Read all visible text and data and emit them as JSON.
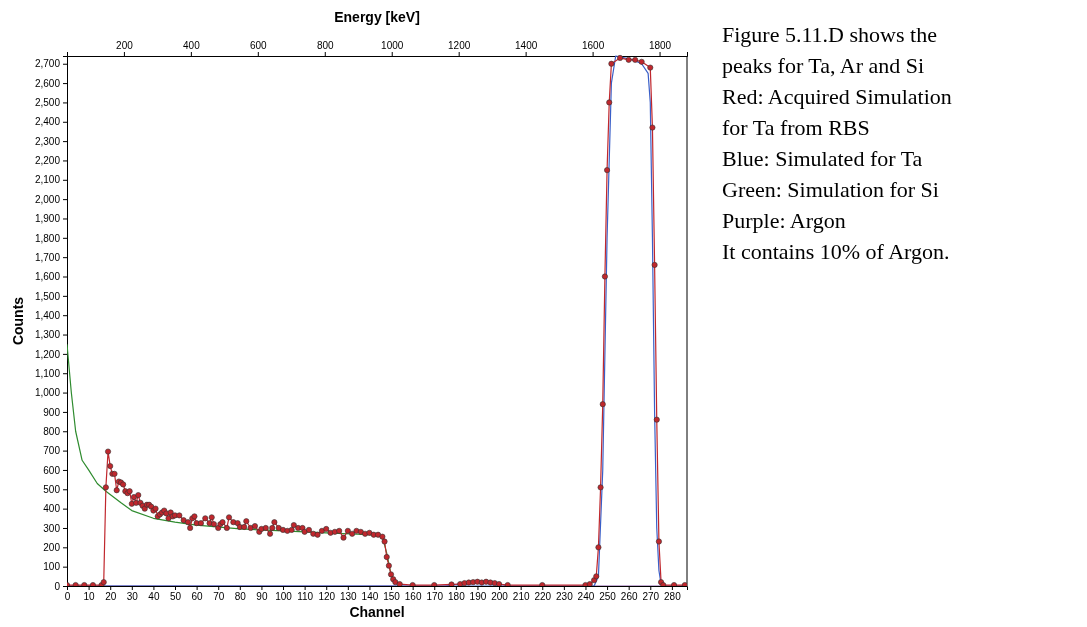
{
  "chart_data": {
    "type": "line",
    "xlabel": "Channel",
    "ylabel": "Counts",
    "x2label": "Energy [keV]",
    "xlim": [
      0,
      287
    ],
    "xticks": [
      0,
      10,
      20,
      30,
      40,
      50,
      60,
      70,
      80,
      90,
      100,
      110,
      120,
      130,
      140,
      150,
      160,
      170,
      180,
      190,
      200,
      210,
      220,
      230,
      240,
      250,
      260,
      270,
      280
    ],
    "x2lim": [
      30,
      1882
    ],
    "x2ticks": [
      200,
      400,
      600,
      800,
      1000,
      1200,
      1400,
      1600,
      1800
    ],
    "ylim": [
      0,
      2740
    ],
    "yticks": [
      0,
      100,
      200,
      300,
      400,
      500,
      600,
      700,
      800,
      900,
      {
        "value": 1000,
        "label": "1,000"
      },
      {
        "value": 1100,
        "label": "1,100"
      },
      {
        "value": 1200,
        "label": "1,200"
      },
      {
        "value": 1300,
        "label": "1,300"
      },
      {
        "value": 1400,
        "label": "1,400"
      },
      {
        "value": 1500,
        "label": "1,500"
      },
      {
        "value": 1600,
        "label": "1,600"
      },
      {
        "value": 1700,
        "label": "1,700"
      },
      {
        "value": 1800,
        "label": "1,800"
      },
      {
        "value": 1900,
        "label": "1,900"
      },
      {
        "value": 2000,
        "label": "2,000"
      },
      {
        "value": 2100,
        "label": "2,100"
      },
      {
        "value": 2200,
        "label": "2,200"
      },
      {
        "value": 2300,
        "label": "2,300"
      },
      {
        "value": 2400,
        "label": "2,400"
      },
      {
        "value": 2500,
        "label": "2,500"
      },
      {
        "value": 2600,
        "label": "2,600"
      },
      {
        "value": 2700,
        "label": "2,700"
      }
    ],
    "grid": false,
    "line_style": "solid",
    "series": [
      {
        "color": "#2e8b2e",
        "marker": "none",
        "x": [
          0,
          2,
          4,
          7,
          10,
          14,
          18,
          25,
          30,
          40,
          50,
          60,
          80,
          100,
          120,
          140,
          146,
          148,
          150
        ],
        "values": [
          1250,
          1000,
          800,
          650,
          600,
          530,
          490,
          430,
          390,
          350,
          330,
          315,
          295,
          285,
          275,
          265,
          255,
          170,
          60
        ]
      },
      {
        "color": "#8a5aa8",
        "marker": "none",
        "x": [
          0,
          175,
          180,
          185,
          190,
          195,
          200,
          205,
          286
        ],
        "values": [
          0,
          0,
          8,
          15,
          20,
          18,
          10,
          0,
          0
        ]
      },
      {
        "color": "#3a5fc8",
        "marker": "none",
        "x": [
          0,
          244,
          246,
          248,
          250,
          252,
          254,
          258,
          262,
          266,
          269,
          270,
          271,
          272,
          273,
          274,
          275,
          277,
          286
        ],
        "values": [
          0,
          0,
          50,
          600,
          1800,
          2600,
          2740,
          2730,
          2720,
          2700,
          2650,
          2500,
          1800,
          900,
          300,
          80,
          10,
          0,
          0
        ]
      },
      {
        "color": "#c0272d",
        "marker": "circle",
        "x": [
          0,
          4,
          8,
          12,
          16,
          17,
          18,
          19,
          20,
          21,
          22,
          23,
          24,
          25,
          26,
          27,
          28,
          29,
          30,
          31,
          32,
          33,
          34,
          35,
          36,
          37,
          38,
          39,
          40,
          41,
          42,
          43,
          44,
          45,
          46,
          47,
          48,
          49,
          50,
          52,
          54,
          56,
          57,
          58,
          59,
          60,
          62,
          64,
          66,
          67,
          68,
          70,
          71,
          72,
          74,
          75,
          77,
          79,
          80,
          82,
          83,
          85,
          87,
          89,
          90,
          92,
          94,
          95,
          96,
          98,
          100,
          102,
          104,
          105,
          107,
          109,
          110,
          112,
          114,
          116,
          118,
          120,
          122,
          124,
          126,
          128,
          130,
          132,
          134,
          136,
          138,
          140,
          142,
          144,
          146,
          147,
          148,
          149,
          150,
          151,
          152,
          154,
          160,
          170,
          178,
          182,
          184,
          186,
          188,
          190,
          192,
          194,
          196,
          198,
          200,
          204,
          220,
          240,
          242,
          244,
          245,
          246,
          247,
          248,
          249,
          250,
          251,
          252,
          256,
          260,
          263,
          266,
          270,
          271,
          272,
          273,
          274,
          275,
          276,
          281,
          286
        ],
        "values": [
          5,
          5,
          5,
          5,
          5,
          20,
          510,
          695,
          620,
          580,
          580,
          495,
          540,
          535,
          525,
          490,
          480,
          490,
          425,
          460,
          430,
          470,
          430,
          415,
          400,
          420,
          420,
          410,
          390,
          400,
          360,
          370,
          380,
          390,
          375,
          350,
          380,
          360,
          365,
          365,
          340,
          330,
          300,
          350,
          360,
          325,
          325,
          350,
          325,
          355,
          320,
          300,
          320,
          330,
          300,
          355,
          330,
          325,
          305,
          305,
          335,
          300,
          310,
          280,
          295,
          300,
          270,
          300,
          330,
          300,
          290,
          285,
          290,
          315,
          300,
          300,
          280,
          290,
          270,
          265,
          285,
          295,
          275,
          280,
          285,
          250,
          285,
          270,
          285,
          280,
          270,
          275,
          265,
          265,
          255,
          230,
          150,
          105,
          60,
          35,
          20,
          10,
          5,
          5,
          8,
          10,
          15,
          18,
          20,
          22,
          18,
          22,
          18,
          15,
          10,
          5,
          5,
          5,
          10,
          30,
          50,
          200,
          510,
          940,
          1600,
          2150,
          2500,
          2700,
          2730,
          2720,
          2720,
          2710,
          2680,
          2370,
          1660,
          860,
          230,
          20,
          5,
          5,
          5
        ]
      }
    ],
    "annotations": [
      "Figure 5.11.D shows the",
      "peaks for Ta, Ar and Si",
      "Red: Acquired Simulation",
      "for Ta from RBS",
      "Blue: Simulated for Ta",
      "Green: Simulation for Si",
      "Purple: Argon",
      "It contains 10% of Argon."
    ]
  }
}
